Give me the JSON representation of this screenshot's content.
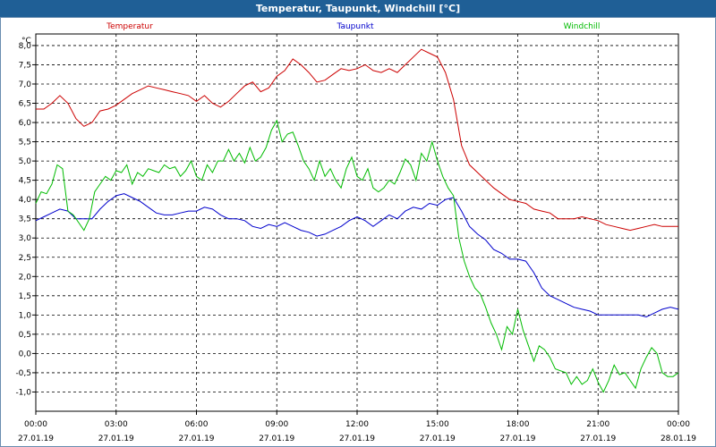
{
  "title": "Temperatur, Taupunkt, Windchill [°C]",
  "chart_data": {
    "type": "line",
    "unit_label": "°C",
    "ylim": [
      -1.5,
      8.3
    ],
    "y_ticks": [
      "8,0",
      "7,5",
      "7,0",
      "6,5",
      "6,0",
      "5,5",
      "5,0",
      "4,5",
      "4,0",
      "3,5",
      "3,0",
      "2,5",
      "2,0",
      "1,5",
      "1,0",
      "0,5",
      "0,0",
      "-0,5",
      "-1,0"
    ],
    "y_tick_values": [
      8.0,
      7.5,
      7.0,
      6.5,
      6.0,
      5.5,
      5.0,
      4.5,
      4.0,
      3.5,
      3.0,
      2.5,
      2.0,
      1.5,
      1.0,
      0.5,
      0.0,
      -0.5,
      -1.0
    ],
    "x_range_hours": [
      0,
      24
    ],
    "x_ticks": [
      {
        "time": "00:00",
        "date": "27.01.19"
      },
      {
        "time": "03:00",
        "date": "27.01.19"
      },
      {
        "time": "06:00",
        "date": "27.01.19"
      },
      {
        "time": "09:00",
        "date": "27.01.19"
      },
      {
        "time": "12:00",
        "date": "27.01.19"
      },
      {
        "time": "15:00",
        "date": "27.01.19"
      },
      {
        "time": "18:00",
        "date": "27.01.19"
      },
      {
        "time": "21:00",
        "date": "27.01.19"
      },
      {
        "time": "00:00",
        "date": "28.01.19"
      }
    ],
    "grid": true,
    "series": [
      {
        "name": "Temperatur",
        "color": "#cc0000",
        "points": [
          [
            0,
            6.35
          ],
          [
            0.3,
            6.35
          ],
          [
            0.6,
            6.5
          ],
          [
            0.9,
            6.7
          ],
          [
            1.2,
            6.5
          ],
          [
            1.5,
            6.1
          ],
          [
            1.8,
            5.9
          ],
          [
            2.1,
            6.0
          ],
          [
            2.4,
            6.3
          ],
          [
            2.7,
            6.35
          ],
          [
            3.0,
            6.45
          ],
          [
            3.3,
            6.6
          ],
          [
            3.6,
            6.75
          ],
          [
            3.9,
            6.85
          ],
          [
            4.2,
            6.95
          ],
          [
            4.5,
            6.9
          ],
          [
            4.8,
            6.85
          ],
          [
            5.1,
            6.8
          ],
          [
            5.4,
            6.75
          ],
          [
            5.7,
            6.7
          ],
          [
            6.0,
            6.55
          ],
          [
            6.3,
            6.7
          ],
          [
            6.6,
            6.5
          ],
          [
            6.9,
            6.4
          ],
          [
            7.2,
            6.55
          ],
          [
            7.5,
            6.75
          ],
          [
            7.8,
            6.95
          ],
          [
            8.1,
            7.05
          ],
          [
            8.4,
            6.8
          ],
          [
            8.7,
            6.9
          ],
          [
            9.0,
            7.2
          ],
          [
            9.3,
            7.35
          ],
          [
            9.6,
            7.65
          ],
          [
            9.9,
            7.5
          ],
          [
            10.2,
            7.3
          ],
          [
            10.5,
            7.05
          ],
          [
            10.8,
            7.1
          ],
          [
            11.1,
            7.25
          ],
          [
            11.4,
            7.4
          ],
          [
            11.7,
            7.35
          ],
          [
            12.0,
            7.4
          ],
          [
            12.3,
            7.5
          ],
          [
            12.6,
            7.35
          ],
          [
            12.9,
            7.3
          ],
          [
            13.2,
            7.4
          ],
          [
            13.5,
            7.3
          ],
          [
            13.8,
            7.5
          ],
          [
            14.1,
            7.7
          ],
          [
            14.4,
            7.9
          ],
          [
            14.7,
            7.8
          ],
          [
            15.0,
            7.7
          ],
          [
            15.3,
            7.3
          ],
          [
            15.6,
            6.6
          ],
          [
            15.9,
            5.4
          ],
          [
            16.2,
            4.9
          ],
          [
            16.5,
            4.7
          ],
          [
            16.8,
            4.5
          ],
          [
            17.1,
            4.3
          ],
          [
            17.4,
            4.15
          ],
          [
            17.7,
            4.0
          ],
          [
            18.0,
            3.95
          ],
          [
            18.3,
            3.9
          ],
          [
            18.6,
            3.75
          ],
          [
            18.9,
            3.7
          ],
          [
            19.2,
            3.65
          ],
          [
            19.5,
            3.5
          ],
          [
            19.8,
            3.5
          ],
          [
            20.1,
            3.5
          ],
          [
            20.4,
            3.55
          ],
          [
            20.7,
            3.5
          ],
          [
            21.0,
            3.45
          ],
          [
            21.3,
            3.35
          ],
          [
            21.6,
            3.3
          ],
          [
            21.9,
            3.25
          ],
          [
            22.2,
            3.2
          ],
          [
            22.5,
            3.25
          ],
          [
            22.8,
            3.3
          ],
          [
            23.1,
            3.35
          ],
          [
            23.4,
            3.3
          ],
          [
            23.7,
            3.3
          ],
          [
            24.0,
            3.3
          ]
        ]
      },
      {
        "name": "Taupunkt",
        "color": "#0000cc",
        "points": [
          [
            0,
            3.45
          ],
          [
            0.3,
            3.55
          ],
          [
            0.6,
            3.65
          ],
          [
            0.9,
            3.75
          ],
          [
            1.2,
            3.7
          ],
          [
            1.5,
            3.5
          ],
          [
            1.8,
            3.5
          ],
          [
            2.1,
            3.5
          ],
          [
            2.4,
            3.75
          ],
          [
            2.7,
            3.95
          ],
          [
            3.0,
            4.1
          ],
          [
            3.3,
            4.15
          ],
          [
            3.6,
            4.05
          ],
          [
            3.9,
            3.95
          ],
          [
            4.2,
            3.8
          ],
          [
            4.5,
            3.65
          ],
          [
            4.8,
            3.6
          ],
          [
            5.1,
            3.6
          ],
          [
            5.4,
            3.65
          ],
          [
            5.7,
            3.7
          ],
          [
            6.0,
            3.7
          ],
          [
            6.3,
            3.8
          ],
          [
            6.6,
            3.75
          ],
          [
            6.9,
            3.6
          ],
          [
            7.2,
            3.5
          ],
          [
            7.5,
            3.5
          ],
          [
            7.8,
            3.45
          ],
          [
            8.1,
            3.3
          ],
          [
            8.4,
            3.25
          ],
          [
            8.7,
            3.35
          ],
          [
            9.0,
            3.3
          ],
          [
            9.3,
            3.4
          ],
          [
            9.6,
            3.3
          ],
          [
            9.9,
            3.2
          ],
          [
            10.2,
            3.15
          ],
          [
            10.5,
            3.05
          ],
          [
            10.8,
            3.1
          ],
          [
            11.1,
            3.2
          ],
          [
            11.4,
            3.3
          ],
          [
            11.7,
            3.45
          ],
          [
            12.0,
            3.55
          ],
          [
            12.3,
            3.45
          ],
          [
            12.6,
            3.3
          ],
          [
            12.9,
            3.45
          ],
          [
            13.2,
            3.6
          ],
          [
            13.5,
            3.5
          ],
          [
            13.8,
            3.7
          ],
          [
            14.1,
            3.8
          ],
          [
            14.4,
            3.75
          ],
          [
            14.7,
            3.9
          ],
          [
            15.0,
            3.85
          ],
          [
            15.3,
            4.0
          ],
          [
            15.6,
            4.05
          ],
          [
            15.9,
            3.7
          ],
          [
            16.2,
            3.3
          ],
          [
            16.5,
            3.1
          ],
          [
            16.8,
            2.95
          ],
          [
            17.1,
            2.7
          ],
          [
            17.4,
            2.6
          ],
          [
            17.7,
            2.45
          ],
          [
            18.0,
            2.45
          ],
          [
            18.3,
            2.4
          ],
          [
            18.6,
            2.1
          ],
          [
            18.9,
            1.7
          ],
          [
            19.2,
            1.5
          ],
          [
            19.5,
            1.4
          ],
          [
            19.8,
            1.3
          ],
          [
            20.1,
            1.2
          ],
          [
            20.4,
            1.15
          ],
          [
            20.7,
            1.1
          ],
          [
            21.0,
            1.0
          ],
          [
            21.3,
            1.0
          ],
          [
            21.6,
            1.0
          ],
          [
            21.9,
            1.0
          ],
          [
            22.2,
            1.0
          ],
          [
            22.5,
            1.0
          ],
          [
            22.8,
            0.95
          ],
          [
            23.1,
            1.05
          ],
          [
            23.4,
            1.15
          ],
          [
            23.7,
            1.2
          ],
          [
            24.0,
            1.15
          ]
        ]
      },
      {
        "name": "Windchill",
        "color": "#00bb00",
        "points": [
          [
            0,
            3.9
          ],
          [
            0.2,
            4.2
          ],
          [
            0.4,
            4.15
          ],
          [
            0.6,
            4.4
          ],
          [
            0.8,
            4.9
          ],
          [
            1.0,
            4.8
          ],
          [
            1.2,
            3.7
          ],
          [
            1.4,
            3.6
          ],
          [
            1.6,
            3.4
          ],
          [
            1.8,
            3.2
          ],
          [
            2.0,
            3.5
          ],
          [
            2.2,
            4.2
          ],
          [
            2.4,
            4.4
          ],
          [
            2.6,
            4.6
          ],
          [
            2.8,
            4.5
          ],
          [
            3.0,
            4.75
          ],
          [
            3.2,
            4.7
          ],
          [
            3.4,
            4.9
          ],
          [
            3.6,
            4.4
          ],
          [
            3.8,
            4.7
          ],
          [
            4.0,
            4.6
          ],
          [
            4.2,
            4.8
          ],
          [
            4.4,
            4.75
          ],
          [
            4.6,
            4.7
          ],
          [
            4.8,
            4.9
          ],
          [
            5.0,
            4.8
          ],
          [
            5.2,
            4.85
          ],
          [
            5.4,
            4.6
          ],
          [
            5.6,
            4.75
          ],
          [
            5.8,
            5.0
          ],
          [
            6.0,
            4.6
          ],
          [
            6.2,
            4.5
          ],
          [
            6.4,
            4.9
          ],
          [
            6.6,
            4.7
          ],
          [
            6.8,
            5.0
          ],
          [
            7.0,
            5.0
          ],
          [
            7.2,
            5.3
          ],
          [
            7.4,
            5.0
          ],
          [
            7.6,
            5.2
          ],
          [
            7.8,
            4.95
          ],
          [
            8.0,
            5.35
          ],
          [
            8.2,
            5.0
          ],
          [
            8.4,
            5.1
          ],
          [
            8.6,
            5.35
          ],
          [
            8.8,
            5.8
          ],
          [
            9.0,
            6.05
          ],
          [
            9.2,
            5.5
          ],
          [
            9.4,
            5.7
          ],
          [
            9.6,
            5.75
          ],
          [
            9.8,
            5.4
          ],
          [
            10.0,
            5.0
          ],
          [
            10.2,
            4.8
          ],
          [
            10.4,
            4.5
          ],
          [
            10.6,
            5.0
          ],
          [
            10.8,
            4.6
          ],
          [
            11.0,
            4.8
          ],
          [
            11.2,
            4.5
          ],
          [
            11.4,
            4.3
          ],
          [
            11.6,
            4.8
          ],
          [
            11.8,
            5.1
          ],
          [
            12.0,
            4.6
          ],
          [
            12.2,
            4.5
          ],
          [
            12.4,
            4.8
          ],
          [
            12.6,
            4.3
          ],
          [
            12.8,
            4.2
          ],
          [
            13.0,
            4.3
          ],
          [
            13.2,
            4.5
          ],
          [
            13.4,
            4.4
          ],
          [
            13.6,
            4.7
          ],
          [
            13.8,
            5.05
          ],
          [
            14.0,
            4.9
          ],
          [
            14.2,
            4.5
          ],
          [
            14.4,
            5.2
          ],
          [
            14.6,
            5.0
          ],
          [
            14.8,
            5.5
          ],
          [
            15.0,
            5.0
          ],
          [
            15.2,
            4.6
          ],
          [
            15.4,
            4.3
          ],
          [
            15.6,
            4.1
          ],
          [
            15.8,
            3.0
          ],
          [
            16.0,
            2.4
          ],
          [
            16.2,
            2.0
          ],
          [
            16.4,
            1.7
          ],
          [
            16.6,
            1.55
          ],
          [
            16.8,
            1.2
          ],
          [
            17.0,
            0.8
          ],
          [
            17.2,
            0.5
          ],
          [
            17.4,
            0.1
          ],
          [
            17.6,
            0.7
          ],
          [
            17.8,
            0.5
          ],
          [
            18.0,
            1.15
          ],
          [
            18.2,
            0.6
          ],
          [
            18.4,
            0.2
          ],
          [
            18.6,
            -0.2
          ],
          [
            18.8,
            0.2
          ],
          [
            19.0,
            0.1
          ],
          [
            19.2,
            -0.1
          ],
          [
            19.4,
            -0.4
          ],
          [
            19.6,
            -0.45
          ],
          [
            19.8,
            -0.5
          ],
          [
            20.0,
            -0.8
          ],
          [
            20.2,
            -0.6
          ],
          [
            20.4,
            -0.8
          ],
          [
            20.6,
            -0.7
          ],
          [
            20.8,
            -0.4
          ],
          [
            21.0,
            -0.75
          ],
          [
            21.2,
            -1.0
          ],
          [
            21.4,
            -0.7
          ],
          [
            21.6,
            -0.3
          ],
          [
            21.8,
            -0.55
          ],
          [
            22.0,
            -0.5
          ],
          [
            22.2,
            -0.7
          ],
          [
            22.4,
            -0.9
          ],
          [
            22.6,
            -0.4
          ],
          [
            22.8,
            -0.1
          ],
          [
            23.0,
            0.15
          ],
          [
            23.2,
            0.0
          ],
          [
            23.4,
            -0.5
          ],
          [
            23.6,
            -0.6
          ],
          [
            23.8,
            -0.6
          ],
          [
            24.0,
            -0.5
          ]
        ]
      }
    ]
  }
}
